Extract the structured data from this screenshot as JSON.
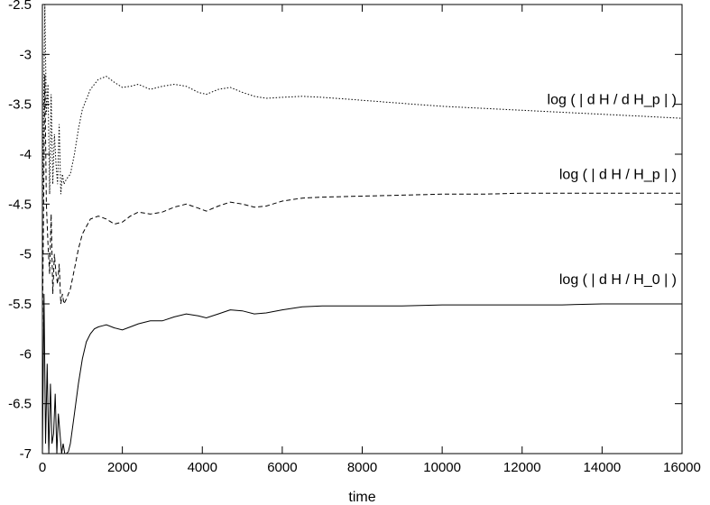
{
  "chart_data": {
    "type": "line",
    "title": "",
    "xlabel": "time",
    "ylabel": "",
    "xlim": [
      0,
      16000
    ],
    "ylim": [
      -7,
      -2.5
    ],
    "grid": false,
    "xticks": [
      0,
      2000,
      4000,
      6000,
      8000,
      10000,
      12000,
      14000,
      16000
    ],
    "xtick_labels": [
      "0",
      "2000",
      "4000",
      "6000",
      "8000",
      "10000",
      "12000",
      "14000",
      "16000"
    ],
    "yticks": [
      -7,
      -6.5,
      -6,
      -5.5,
      -5,
      -4.5,
      -4,
      -3.5,
      -3,
      -2.5
    ],
    "ytick_labels": [
      "-7",
      "-6.5",
      "-6",
      "-5.5",
      "-5",
      "-4.5",
      "-4",
      "-3.5",
      "-3",
      "-2.5"
    ],
    "series": [
      {
        "name": "log ( | d H / d H_p | )",
        "line_style": "dotted",
        "label_at": [
          16000,
          -3.5
        ],
        "x": [
          0,
          60,
          100,
          140,
          180,
          220,
          260,
          300,
          340,
          380,
          420,
          460,
          500,
          540,
          600,
          700,
          800,
          900,
          1000,
          1200,
          1400,
          1600,
          1800,
          2000,
          2200,
          2400,
          2700,
          3000,
          3300,
          3600,
          3900,
          4100,
          4400,
          4700,
          5000,
          5300,
          5600,
          6000,
          6500,
          7000,
          8000,
          9000,
          10000,
          11000,
          12000,
          13000,
          14000,
          15000,
          16000
        ],
        "y": [
          -4.6,
          -2.5,
          -3.6,
          -3.3,
          -4.4,
          -3.4,
          -4.3,
          -3.8,
          -4.1,
          -4.3,
          -3.7,
          -4.4,
          -4.2,
          -4.3,
          -4.25,
          -4.2,
          -4.0,
          -3.75,
          -3.55,
          -3.35,
          -3.25,
          -3.22,
          -3.28,
          -3.33,
          -3.32,
          -3.3,
          -3.35,
          -3.32,
          -3.3,
          -3.32,
          -3.38,
          -3.4,
          -3.35,
          -3.33,
          -3.38,
          -3.42,
          -3.44,
          -3.43,
          -3.42,
          -3.43,
          -3.46,
          -3.49,
          -3.52,
          -3.54,
          -3.56,
          -3.58,
          -3.6,
          -3.62,
          -3.64
        ]
      },
      {
        "name": "log ( | d H / H_p | )",
        "line_style": "dashed",
        "label_at": [
          16000,
          -4.25
        ],
        "x": [
          0,
          60,
          100,
          140,
          180,
          220,
          260,
          300,
          340,
          380,
          420,
          460,
          500,
          540,
          600,
          700,
          800,
          900,
          1000,
          1200,
          1400,
          1600,
          1800,
          2000,
          2200,
          2400,
          2700,
          3000,
          3300,
          3600,
          3900,
          4100,
          4400,
          4700,
          5000,
          5300,
          5600,
          6000,
          6500,
          7000,
          8000,
          9000,
          10000,
          11000,
          12000,
          13000,
          14000,
          15000,
          16000
        ],
        "y": [
          -5.8,
          -3.2,
          -4.5,
          -4.9,
          -5.2,
          -4.6,
          -5.4,
          -5.0,
          -5.2,
          -5.3,
          -5.1,
          -5.5,
          -5.4,
          -5.5,
          -5.45,
          -5.35,
          -5.15,
          -4.95,
          -4.8,
          -4.65,
          -4.62,
          -4.65,
          -4.7,
          -4.68,
          -4.62,
          -4.58,
          -4.6,
          -4.58,
          -4.53,
          -4.5,
          -4.54,
          -4.57,
          -4.52,
          -4.48,
          -4.5,
          -4.53,
          -4.52,
          -4.47,
          -4.44,
          -4.43,
          -4.42,
          -4.41,
          -4.4,
          -4.4,
          -4.39,
          -4.39,
          -4.39,
          -4.39,
          -4.39
        ]
      },
      {
        "name": "log ( | d H / H_0 | )",
        "line_style": "solid",
        "label_at": [
          16000,
          -5.3
        ],
        "x": [
          0,
          40,
          80,
          120,
          160,
          200,
          240,
          280,
          320,
          360,
          400,
          440,
          480,
          520,
          560,
          600,
          650,
          700,
          800,
          900,
          1000,
          1100,
          1200,
          1300,
          1400,
          1500,
          1600,
          1800,
          2000,
          2200,
          2400,
          2700,
          3000,
          3300,
          3600,
          3900,
          4100,
          4400,
          4700,
          5000,
          5300,
          5600,
          6000,
          6500,
          7000,
          8000,
          9000,
          10000,
          11000,
          12000,
          13000,
          14000,
          15000,
          16000
        ],
        "y": [
          -7.0,
          -5.4,
          -6.9,
          -6.1,
          -7.0,
          -6.3,
          -6.9,
          -6.8,
          -6.4,
          -7.0,
          -6.6,
          -6.8,
          -7.0,
          -6.9,
          -7.0,
          -7.0,
          -6.98,
          -6.9,
          -6.6,
          -6.3,
          -6.05,
          -5.88,
          -5.8,
          -5.75,
          -5.73,
          -5.72,
          -5.71,
          -5.74,
          -5.76,
          -5.73,
          -5.7,
          -5.67,
          -5.67,
          -5.63,
          -5.6,
          -5.62,
          -5.64,
          -5.6,
          -5.56,
          -5.57,
          -5.6,
          -5.59,
          -5.56,
          -5.53,
          -5.52,
          -5.52,
          -5.52,
          -5.51,
          -5.51,
          -5.51,
          -5.51,
          -5.5,
          -5.5,
          -5.5
        ]
      }
    ]
  }
}
